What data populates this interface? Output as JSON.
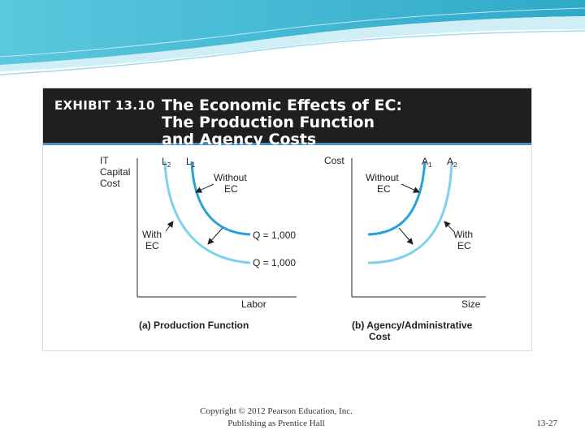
{
  "colors": {
    "curve_inner": "#29a1d6",
    "curve_outer": "#7fd0ef",
    "header_bg": "#1f1f1f",
    "header_rule": "#4a8fc2",
    "teal_decor": "#3ab6d4"
  },
  "exhibit": {
    "number": "EXHIBIT 13.10",
    "title_lines": [
      "The Economic Effects of EC:",
      "The Production Function",
      "and Agency Costs"
    ]
  },
  "panel_a": {
    "y_label_lines": [
      "IT",
      "Capital",
      "Cost"
    ],
    "x_label": "Labor",
    "curve_labels": {
      "l2": "L",
      "l2_sub": "2",
      "l1": "L",
      "l1_sub": "1"
    },
    "without_lines": [
      "Without",
      "EC"
    ],
    "with_lines": [
      "With",
      "EC"
    ],
    "q_upper": "Q = 1,000",
    "q_lower": "Q = 1,000",
    "caption": "(a)  Production Function"
  },
  "panel_b": {
    "y_label": "Cost",
    "x_label": "Size",
    "curve_labels": {
      "a1": "A",
      "a1_sub": "1",
      "a2": "A",
      "a2_sub": "2"
    },
    "without_lines": [
      "Without",
      "EC"
    ],
    "with_lines": [
      "With",
      "EC"
    ],
    "caption_lines": [
      "(b)  Agency/Administrative",
      "Cost"
    ]
  },
  "footer": {
    "lines": [
      "Copyright © 2012 Pearson Education, Inc.",
      "Publishing as Prentice Hall"
    ],
    "page": "13-27"
  }
}
